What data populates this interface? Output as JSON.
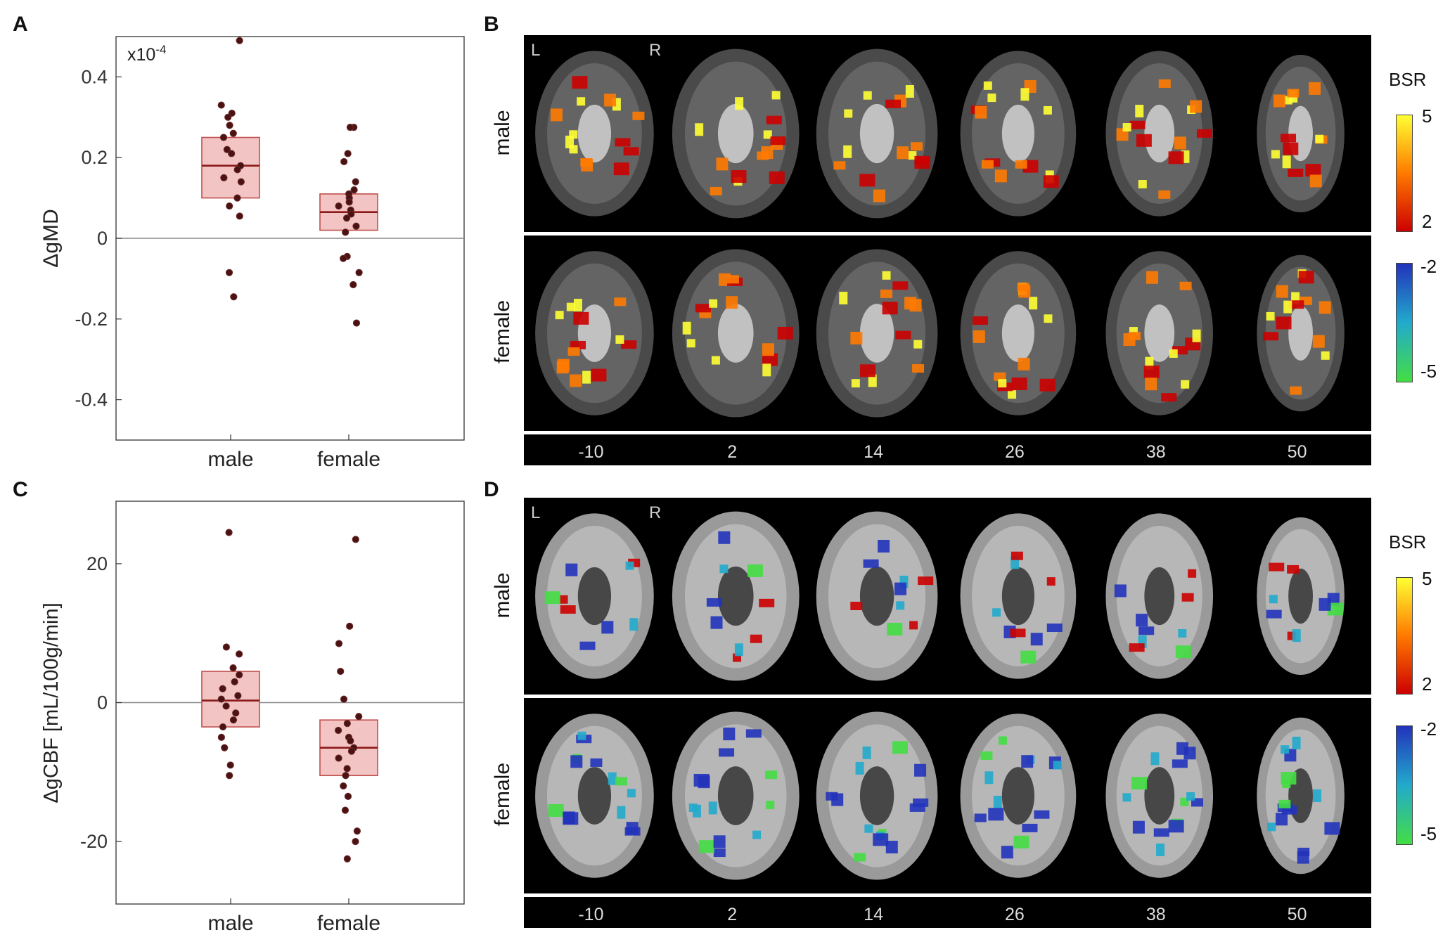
{
  "panels": {
    "A": "A",
    "B": "B",
    "C": "C",
    "D": "D"
  },
  "chart_data": [
    {
      "type": "scatter",
      "panel": "A",
      "exponent_label": "x10",
      "exponent_sup": "-4",
      "ylabel": "ΔgMD",
      "categories": [
        "male",
        "female"
      ],
      "ylim": [
        -0.5,
        0.5
      ],
      "yticks": [
        "0.4",
        "0.2",
        "0",
        "-0.2",
        "-0.4"
      ],
      "ytick_values": [
        0.4,
        0.2,
        0,
        -0.2,
        -0.4
      ],
      "boxes": [
        {
          "category": "male",
          "low": 0.1,
          "median": 0.18,
          "high": 0.25
        },
        {
          "category": "female",
          "low": 0.02,
          "median": 0.065,
          "high": 0.11
        }
      ],
      "series": [
        {
          "category": "male",
          "values": [
            0.49,
            0.33,
            0.31,
            0.3,
            0.28,
            0.26,
            0.25,
            0.22,
            0.21,
            0.18,
            0.17,
            0.15,
            0.14,
            0.1,
            0.08,
            0.055,
            -0.085,
            -0.145
          ]
        },
        {
          "category": "female",
          "values": [
            0.275,
            0.275,
            0.21,
            0.19,
            0.14,
            0.12,
            0.11,
            0.1,
            0.09,
            0.08,
            0.07,
            0.06,
            0.05,
            0.03,
            0.015,
            -0.045,
            -0.05,
            -0.085,
            -0.115,
            -0.21
          ]
        }
      ]
    },
    {
      "type": "scatter",
      "panel": "C",
      "ylabel": "ΔgCBF  [mL/100g/min]",
      "categories": [
        "male",
        "female"
      ],
      "ylim": [
        -29,
        29
      ],
      "yticks": [
        "20",
        "0",
        "-20"
      ],
      "ytick_values": [
        20,
        0,
        -20
      ],
      "boxes": [
        {
          "category": "male",
          "low": -3.5,
          "median": 0.3,
          "high": 4.5
        },
        {
          "category": "female",
          "low": -10.5,
          "median": -6.5,
          "high": -2.5
        }
      ],
      "series": [
        {
          "category": "male",
          "values": [
            24.5,
            8.0,
            7.0,
            5.0,
            4.0,
            3.0,
            2.0,
            1.0,
            0.5,
            -0.5,
            -1.5,
            -2.5,
            -3.5,
            -5.0,
            -6.5,
            -9.0,
            -10.5
          ]
        },
        {
          "category": "female",
          "values": [
            23.5,
            11.0,
            8.5,
            4.5,
            0.5,
            -2.0,
            -3.0,
            -4.0,
            -5.0,
            -5.5,
            -6.5,
            -7.0,
            -8.0,
            -9.5,
            -10.5,
            -12.0,
            -13.5,
            -15.5,
            -18.5,
            -20.0,
            -22.5
          ]
        }
      ]
    }
  ],
  "brain_panels": [
    {
      "panel": "B",
      "rows": [
        "male",
        "female"
      ],
      "slices": [
        "-10",
        "2",
        "14",
        "26",
        "38",
        "50"
      ],
      "left": "L",
      "right": "R",
      "colorbar": {
        "title": "BSR",
        "positive": {
          "max": "5",
          "min": "2",
          "colors": [
            "#ffff33",
            "#ff7a00",
            "#cc0000"
          ]
        },
        "negative": {
          "max": "-2",
          "min": "-5",
          "colors": [
            "#2233bb",
            "#22aacc",
            "#44dd44"
          ]
        }
      },
      "background": "#4a4a4a"
    },
    {
      "panel": "D",
      "rows": [
        "male",
        "female"
      ],
      "slices": [
        "-10",
        "2",
        "14",
        "26",
        "38",
        "50"
      ],
      "left": "L",
      "right": "R",
      "colorbar": {
        "title": "BSR",
        "positive": {
          "max": "5",
          "min": "2",
          "colors": [
            "#ffff33",
            "#ff7a00",
            "#cc0000"
          ]
        },
        "negative": {
          "max": "-2",
          "min": "-5",
          "colors": [
            "#2233bb",
            "#22aacc",
            "#44dd44"
          ]
        }
      },
      "background": "#9a9a9a"
    }
  ]
}
